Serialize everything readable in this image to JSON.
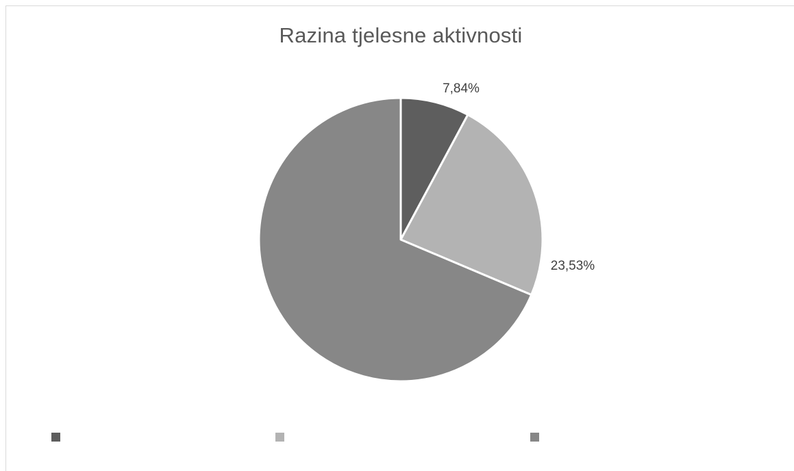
{
  "chart_data": {
    "type": "pie",
    "title": "Razina tjelesne aktivnosti",
    "slices": [
      {
        "name": "",
        "value": 7.84,
        "label": "7,84%",
        "color": "#5e5e5e"
      },
      {
        "name": "",
        "value": 23.53,
        "label": "23,53%",
        "color": "#b3b3b3"
      },
      {
        "name": "",
        "value": 68.63,
        "label": "",
        "color": "#878787"
      }
    ],
    "legend_position": "bottom",
    "data_label_color": "#404040",
    "title_color": "#595959"
  }
}
